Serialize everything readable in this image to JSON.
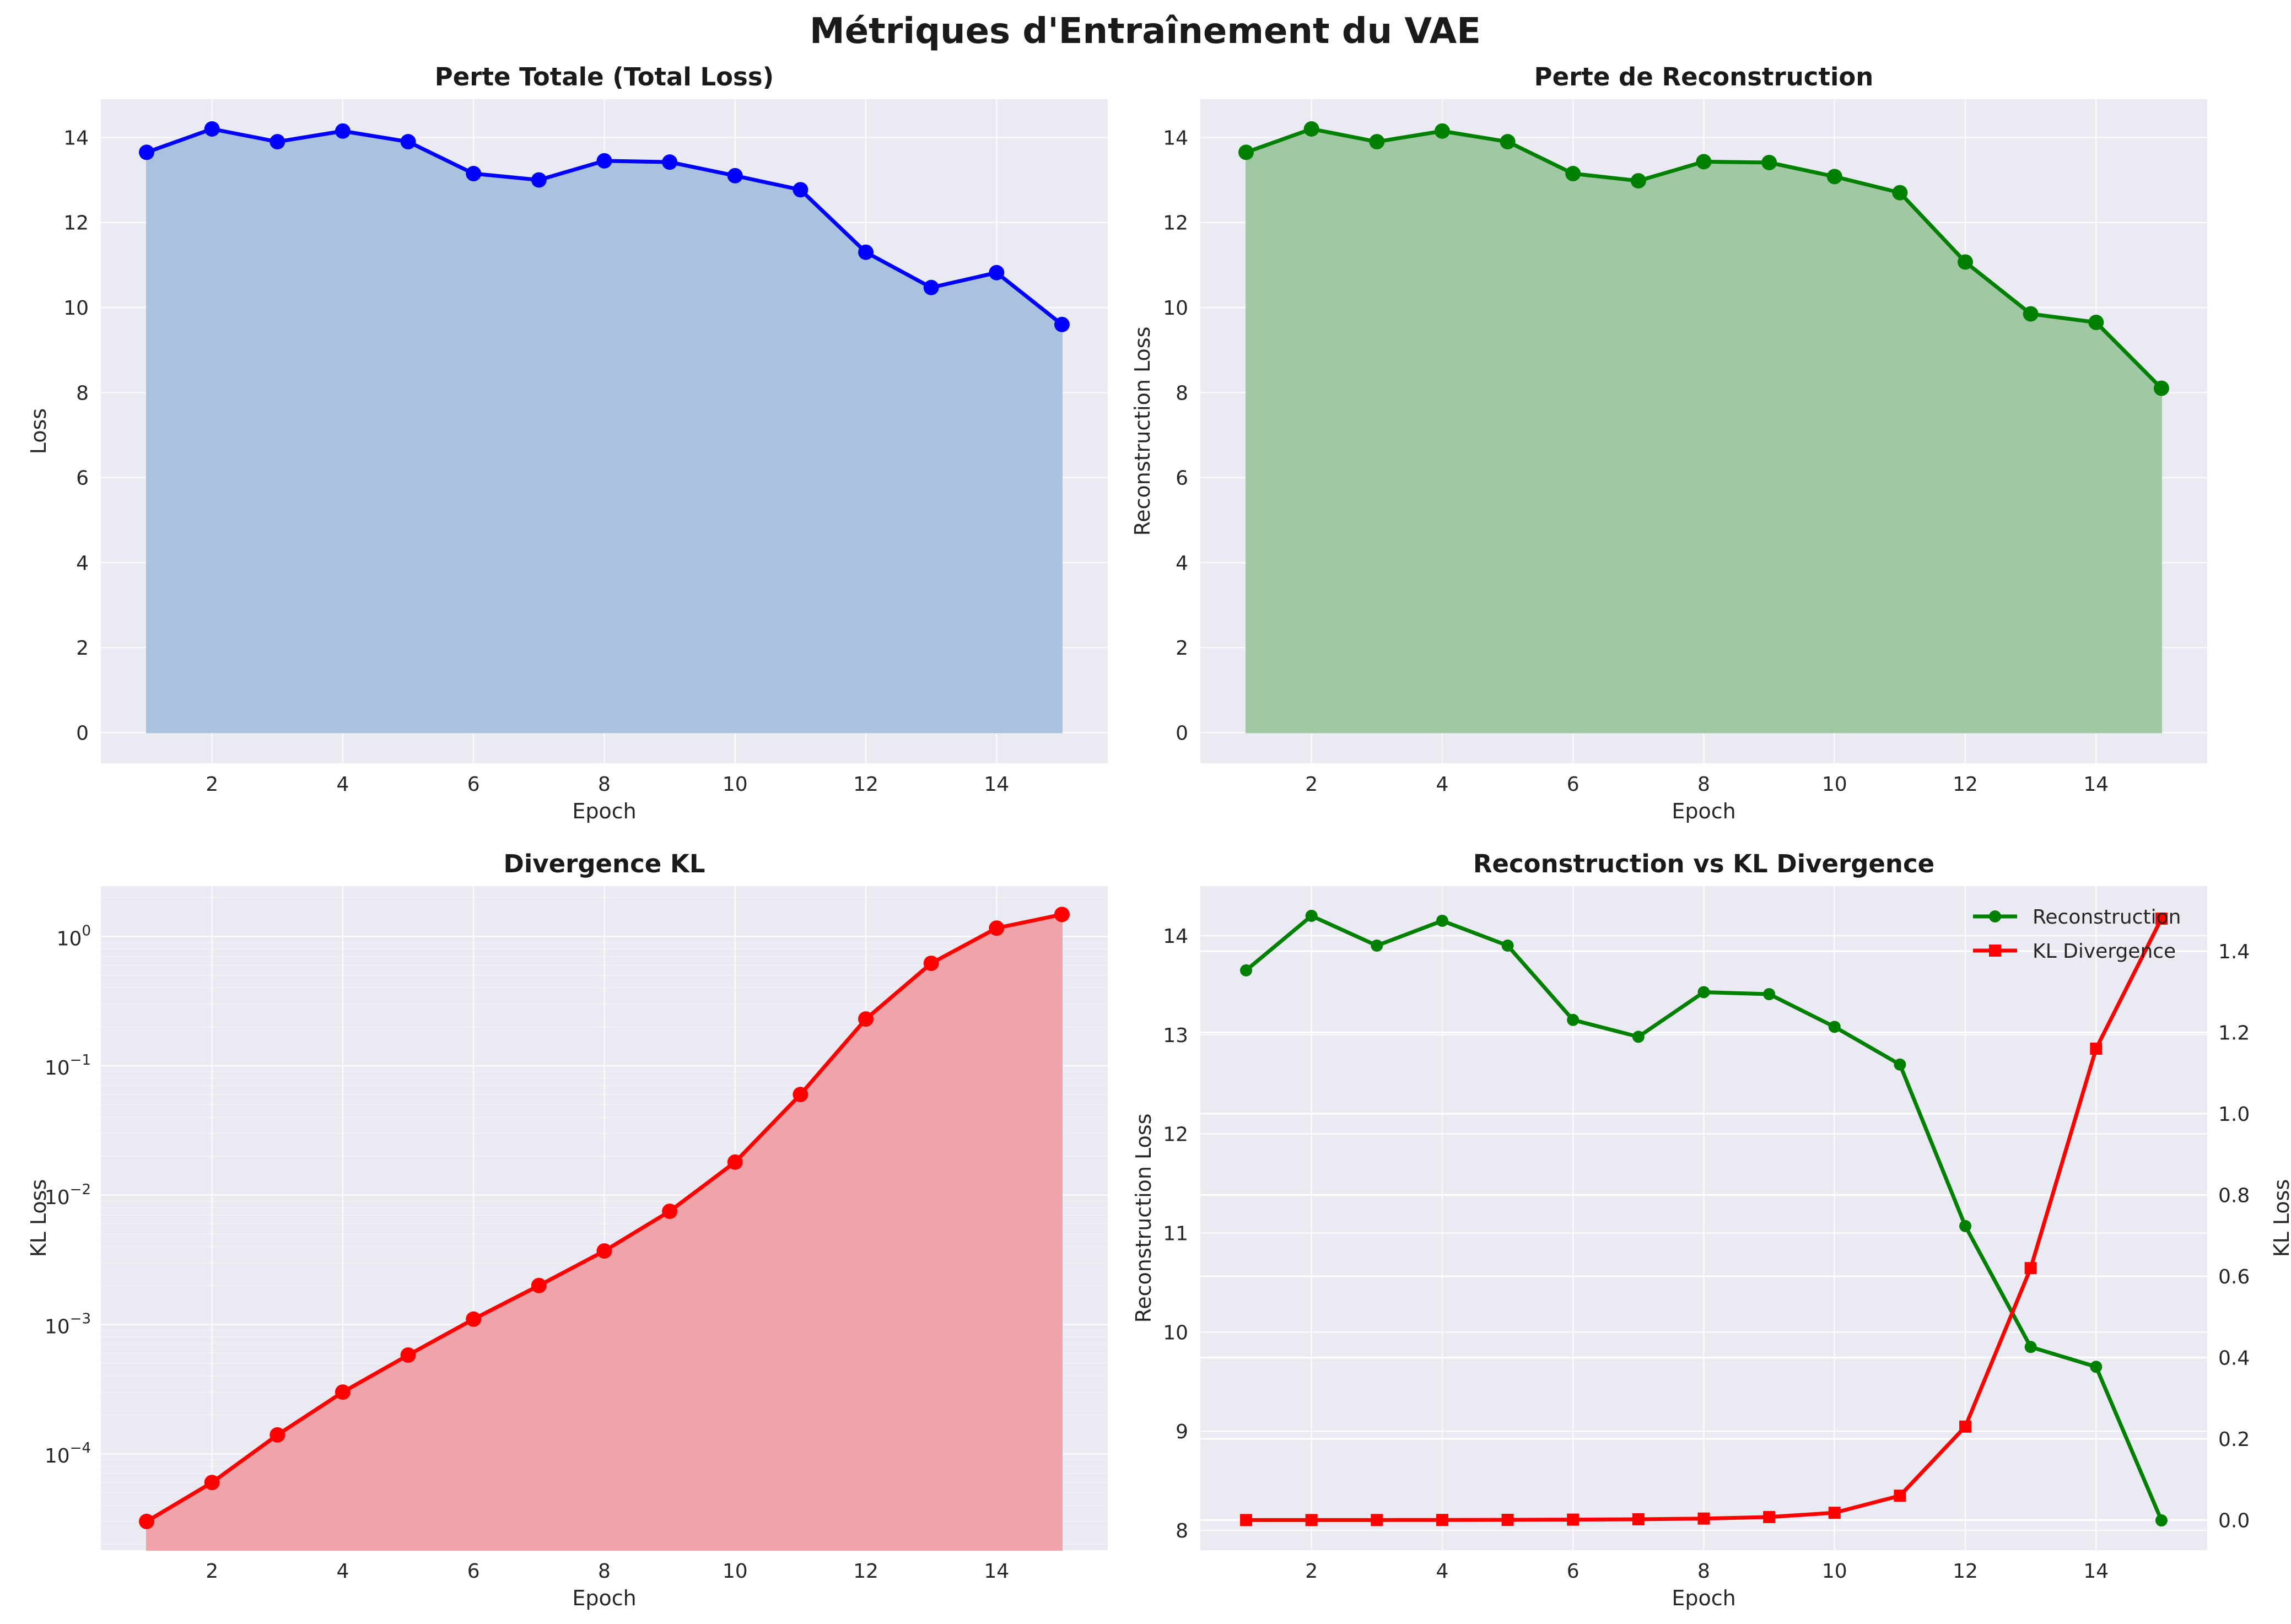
{
  "figure": {
    "title": "Métriques d'Entraînement du VAE"
  },
  "chart_data": [
    {
      "id": "total",
      "type": "area",
      "title": "Perte Totale (Total Loss)",
      "xlabel": "Epoch",
      "ylabel": "Loss",
      "x": [
        1,
        2,
        3,
        4,
        5,
        6,
        7,
        8,
        9,
        10,
        11,
        12,
        13,
        14,
        15
      ],
      "series": [
        {
          "values": [
            13.65,
            14.2,
            13.9,
            14.15,
            13.9,
            13.15,
            13.0,
            13.45,
            13.42,
            13.1,
            12.77,
            11.3,
            10.47,
            10.82,
            9.6
          ],
          "color": "#0000ff",
          "fill": "#a9c3de"
        }
      ],
      "xlim": [
        0.3,
        15.7
      ],
      "ylim": [
        -0.72,
        14.9
      ],
      "xticks": [
        2,
        4,
        6,
        8,
        10,
        12,
        14
      ],
      "yticks": [
        0,
        2,
        4,
        6,
        8,
        10,
        12,
        14
      ],
      "grid": true
    },
    {
      "id": "recon",
      "type": "area",
      "title": "Perte de Reconstruction",
      "xlabel": "Epoch",
      "ylabel": "Reconstruction Loss",
      "x": [
        1,
        2,
        3,
        4,
        5,
        6,
        7,
        8,
        9,
        10,
        11,
        12,
        13,
        14,
        15
      ],
      "series": [
        {
          "values": [
            13.65,
            14.2,
            13.9,
            14.15,
            13.9,
            13.15,
            12.98,
            13.43,
            13.41,
            13.08,
            12.7,
            11.07,
            9.85,
            9.65,
            8.1
          ],
          "color": "#008000",
          "fill": "#a0c9a3"
        }
      ],
      "xlim": [
        0.3,
        15.7
      ],
      "ylim": [
        -0.72,
        14.9
      ],
      "xticks": [
        2,
        4,
        6,
        8,
        10,
        12,
        14
      ],
      "yticks": [
        0,
        2,
        4,
        6,
        8,
        10,
        12,
        14
      ],
      "grid": true
    },
    {
      "id": "kl",
      "type": "area",
      "title": "Divergence KL",
      "xlabel": "Epoch",
      "ylabel": "KL Loss",
      "yscale": "log",
      "x": [
        1,
        2,
        3,
        4,
        5,
        6,
        7,
        8,
        9,
        10,
        11,
        12,
        13,
        14,
        15
      ],
      "series": [
        {
          "values": [
            3e-05,
            6e-05,
            0.00014,
            0.0003,
            0.00058,
            0.0011,
            0.002,
            0.0037,
            0.0075,
            0.018,
            0.06,
            0.23,
            0.62,
            1.16,
            1.48
          ],
          "color": "#ff0000",
          "fill": "#f0a3a9"
        }
      ],
      "xlim": [
        0.3,
        15.7
      ],
      "ylim": [
        1.8e-05,
        2.45
      ],
      "xticks": [
        2,
        4,
        6,
        8,
        10,
        12,
        14
      ],
      "yticks": [
        {
          "value": 0.0001,
          "base": "10",
          "exp": "−4"
        },
        {
          "value": 0.001,
          "base": "10",
          "exp": "−3"
        },
        {
          "value": 0.01,
          "base": "10",
          "exp": "−2"
        },
        {
          "value": 0.1,
          "base": "10",
          "exp": "−1"
        },
        {
          "value": 1,
          "base": "10",
          "exp": "0"
        }
      ],
      "grid": true
    },
    {
      "id": "dual",
      "type": "line",
      "title": "Reconstruction vs KL Divergence",
      "xlabel": "Epoch",
      "ylabel": "Reconstruction Loss",
      "y2label": "KL Loss",
      "x": [
        1,
        2,
        3,
        4,
        5,
        6,
        7,
        8,
        9,
        10,
        11,
        12,
        13,
        14,
        15
      ],
      "series": [
        {
          "name": "Reconstruction",
          "axis": "left",
          "marker": "circle",
          "values": [
            13.65,
            14.2,
            13.9,
            14.15,
            13.9,
            13.15,
            12.98,
            13.43,
            13.41,
            13.08,
            12.7,
            11.07,
            9.85,
            9.65,
            8.1
          ],
          "color": "#008000"
        },
        {
          "name": "KL Divergence",
          "axis": "right",
          "marker": "square",
          "values": [
            3e-05,
            6e-05,
            0.00014,
            0.0003,
            0.00058,
            0.0011,
            0.002,
            0.0037,
            0.0075,
            0.018,
            0.06,
            0.23,
            0.62,
            1.16,
            1.48
          ],
          "color": "#ff0000"
        }
      ],
      "xlim": [
        0.3,
        15.7
      ],
      "ylim": [
        7.8,
        14.5
      ],
      "y2lim": [
        -0.074,
        1.56
      ],
      "xticks": [
        2,
        4,
        6,
        8,
        10,
        12,
        14
      ],
      "yticks": [
        8,
        9,
        10,
        11,
        12,
        13,
        14
      ],
      "y2ticks": [
        0.0,
        0.2,
        0.4,
        0.6,
        0.8,
        1.0,
        1.2,
        1.4
      ],
      "legend": "upper right",
      "grid": true
    }
  ]
}
